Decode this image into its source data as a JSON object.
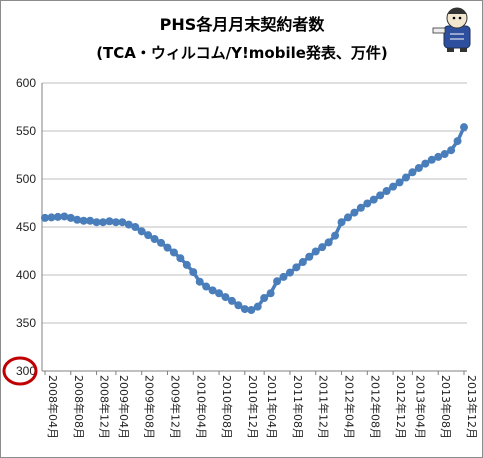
{
  "chart_data": {
    "type": "line",
    "title_line1": "PHS各月月末契約者数",
    "title_line2": "(TCA・ウィルコム/Y!mobile発表、万件)",
    "ylim": [
      300,
      600
    ],
    "yticks": [
      "600",
      "550",
      "500",
      "450",
      "400",
      "350",
      "300"
    ],
    "ytick_values": [
      600,
      550,
      500,
      450,
      400,
      350,
      300
    ],
    "grid": true,
    "legend": "none",
    "line_color": "#4a7ebb",
    "highlight_color": "#c00000",
    "highlight_tick": "300",
    "xtick_labels": [
      "2008年04月",
      "2008年08月",
      "2008年12月",
      "2009年04月",
      "2009年08月",
      "2009年12月",
      "2010年04月",
      "2010年08月",
      "2010年12月",
      "2011年04月",
      "2011年08月",
      "2011年12月",
      "2012年04月",
      "2012年08月",
      "2012年12月",
      "2013年04月",
      "2013年08月",
      "2013年12月"
    ],
    "values": [
      459.5,
      460,
      460.5,
      461,
      459.5,
      457.5,
      456.5,
      456.5,
      455,
      455,
      456,
      455,
      455,
      452.5,
      450,
      445.5,
      441.5,
      437.5,
      433.5,
      428.5,
      423.5,
      417.5,
      410.5,
      403,
      393,
      388,
      384,
      381,
      377,
      373,
      368.5,
      364.5,
      363.5,
      367,
      376,
      381,
      393.5,
      398,
      402.5,
      408,
      413.5,
      419,
      424.5,
      429,
      434,
      441,
      455,
      460,
      465,
      470,
      474.5,
      478.5,
      483,
      487.5,
      492,
      496.5,
      501.5,
      507,
      511.5,
      516,
      520,
      523,
      526,
      530,
      539.5,
      554
    ]
  }
}
